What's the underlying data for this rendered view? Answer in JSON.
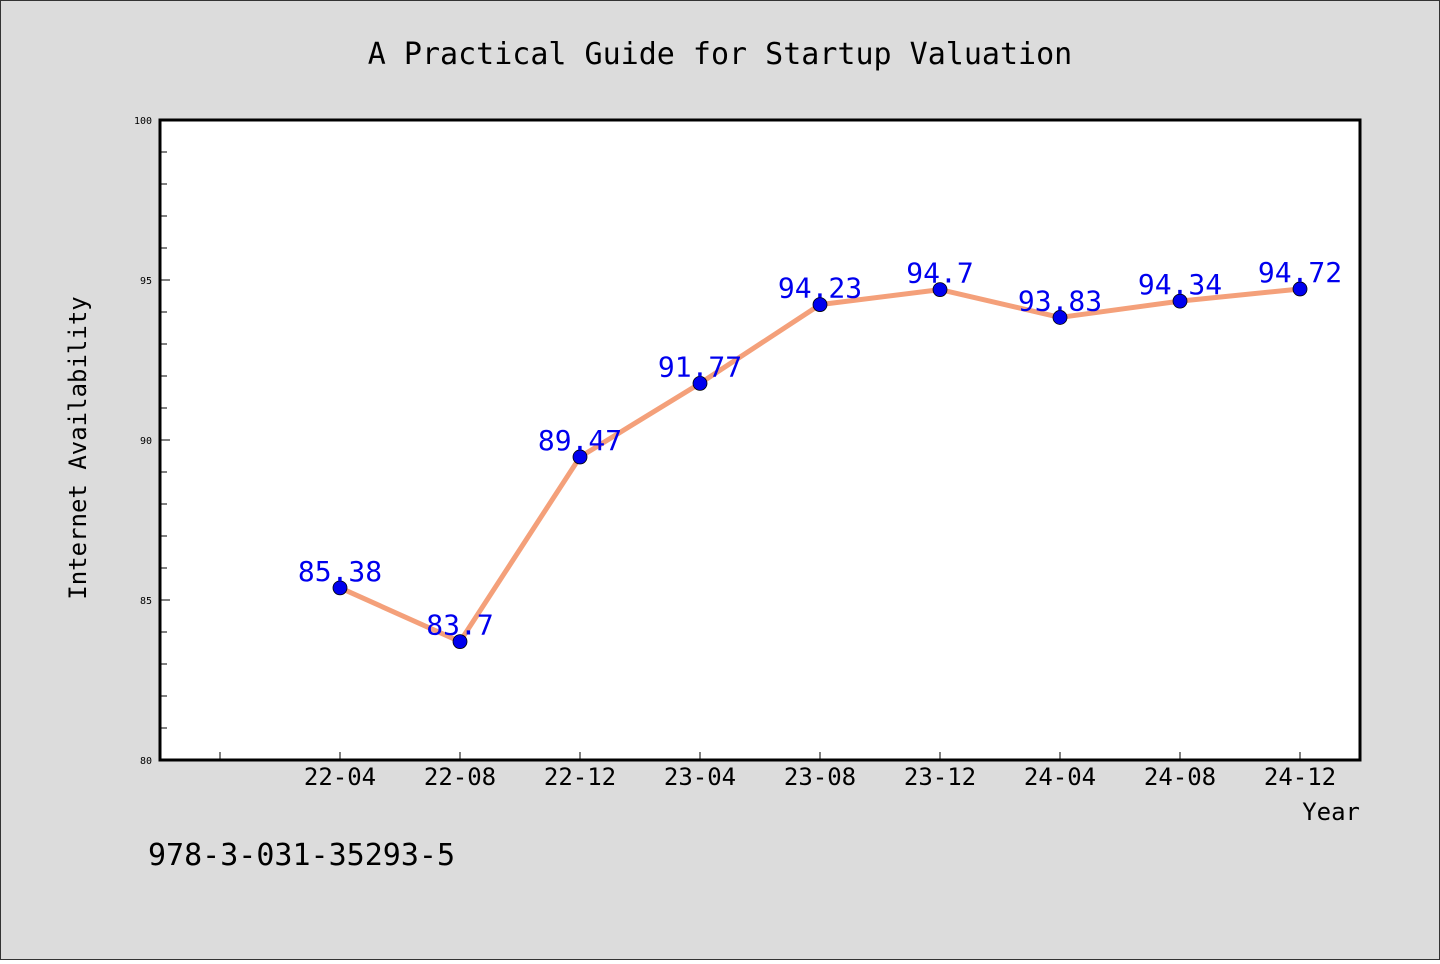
{
  "chart_data": {
    "type": "line",
    "title": "A Practical Guide for Startup Valuation",
    "xlabel": "Year",
    "ylabel": "Internet Availability",
    "categories": [
      "22-04",
      "22-08",
      "22-12",
      "23-04",
      "23-08",
      "23-12",
      "24-04",
      "24-08",
      "24-12"
    ],
    "series": [
      {
        "values": [
          85.38,
          83.7,
          89.47,
          91.77,
          94.23,
          94.7,
          93.83,
          94.34,
          94.72
        ],
        "labels": [
          "85.38",
          "83.7",
          "89.47",
          "91.77",
          "94.23",
          "94.7",
          "93.83",
          "94.34",
          "94.72"
        ]
      }
    ],
    "ylim": [
      80,
      100
    ],
    "yticks": [
      "80",
      "85",
      "90",
      "95",
      "100"
    ],
    "grid": false,
    "footer_text": "978-3-031-35293-5",
    "colors": {
      "background": "#dcdcdc",
      "plot_background": "#ffffff",
      "line": "#f4a07a",
      "marker": "#0000ee",
      "data_label": "#0000ee",
      "text": "#000000"
    }
  }
}
